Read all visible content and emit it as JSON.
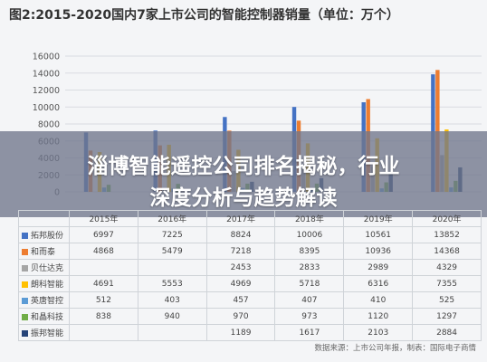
{
  "chart_data": {
    "type": "bar",
    "title": "图2:2015-2020国内7家上市公司的智能控制器销量（单位：万个）",
    "categories": [
      "2015年",
      "2016年",
      "2017年",
      "2018年",
      "2019年",
      "2020年"
    ],
    "ylim": [
      0,
      16000
    ],
    "yticks": [
      "0",
      "2000",
      "4000",
      "6000",
      "8000",
      "10000",
      "12000",
      "14000",
      "16000"
    ],
    "grid": true,
    "series": [
      {
        "name": "拓邦股份",
        "color": "#4472c4",
        "values": [
          6997,
          7225,
          8824,
          10006,
          10561,
          13852
        ]
      },
      {
        "name": "和而泰",
        "color": "#ed7d31",
        "values": [
          4868,
          5479,
          7218,
          8395,
          10936,
          14368
        ]
      },
      {
        "name": "贝仕达克",
        "color": "#a5a5a5",
        "values": [
          null,
          null,
          2453,
          2833,
          2989,
          4329
        ]
      },
      {
        "name": "朗科智能",
        "color": "#ffc000",
        "values": [
          4691,
          5553,
          4969,
          5718,
          6316,
          7355
        ]
      },
      {
        "name": "英唐智控",
        "color": "#5b9bd5",
        "values": [
          512,
          403,
          457,
          407,
          410,
          525
        ]
      },
      {
        "name": "和晶科技",
        "color": "#70ad47",
        "values": [
          838,
          940,
          970,
          973,
          1120,
          1297
        ]
      },
      {
        "name": "振邦智能",
        "color": "#264478",
        "values": [
          null,
          null,
          1189,
          1617,
          2103,
          2884
        ]
      }
    ],
    "table_rows": [
      {
        "name": "拓邦股份",
        "cells": [
          "6997",
          "7225",
          "8824",
          "10006",
          "10561",
          "13852"
        ]
      },
      {
        "name": "和而泰",
        "cells": [
          "4868",
          "5479",
          "7218",
          "8395",
          "10936",
          "14368"
        ]
      },
      {
        "name": "贝仕达克",
        "cells": [
          "",
          "",
          "2453",
          "2833",
          "2989",
          "4329"
        ]
      },
      {
        "name": "朗科智能",
        "cells": [
          "4691",
          "5553",
          "4969",
          "5718",
          "6316",
          "7355"
        ]
      },
      {
        "name": "英唐智控",
        "cells": [
          "512",
          "403",
          "457",
          "407",
          "410",
          "525"
        ]
      },
      {
        "name": "和晶科技",
        "cells": [
          "838",
          "940",
          "970",
          "973",
          "1120",
          "1297"
        ]
      },
      {
        "name": "振邦智能",
        "cells": [
          "",
          "",
          "1189",
          "1617",
          "2103",
          "2884"
        ]
      }
    ]
  },
  "overlay": {
    "line1": "淄博智能遥控公司排名揭秘，行业",
    "line2": "深度分析与趋势解读"
  },
  "source": "数据来源：上市公司年报，制表：国际电子商情"
}
